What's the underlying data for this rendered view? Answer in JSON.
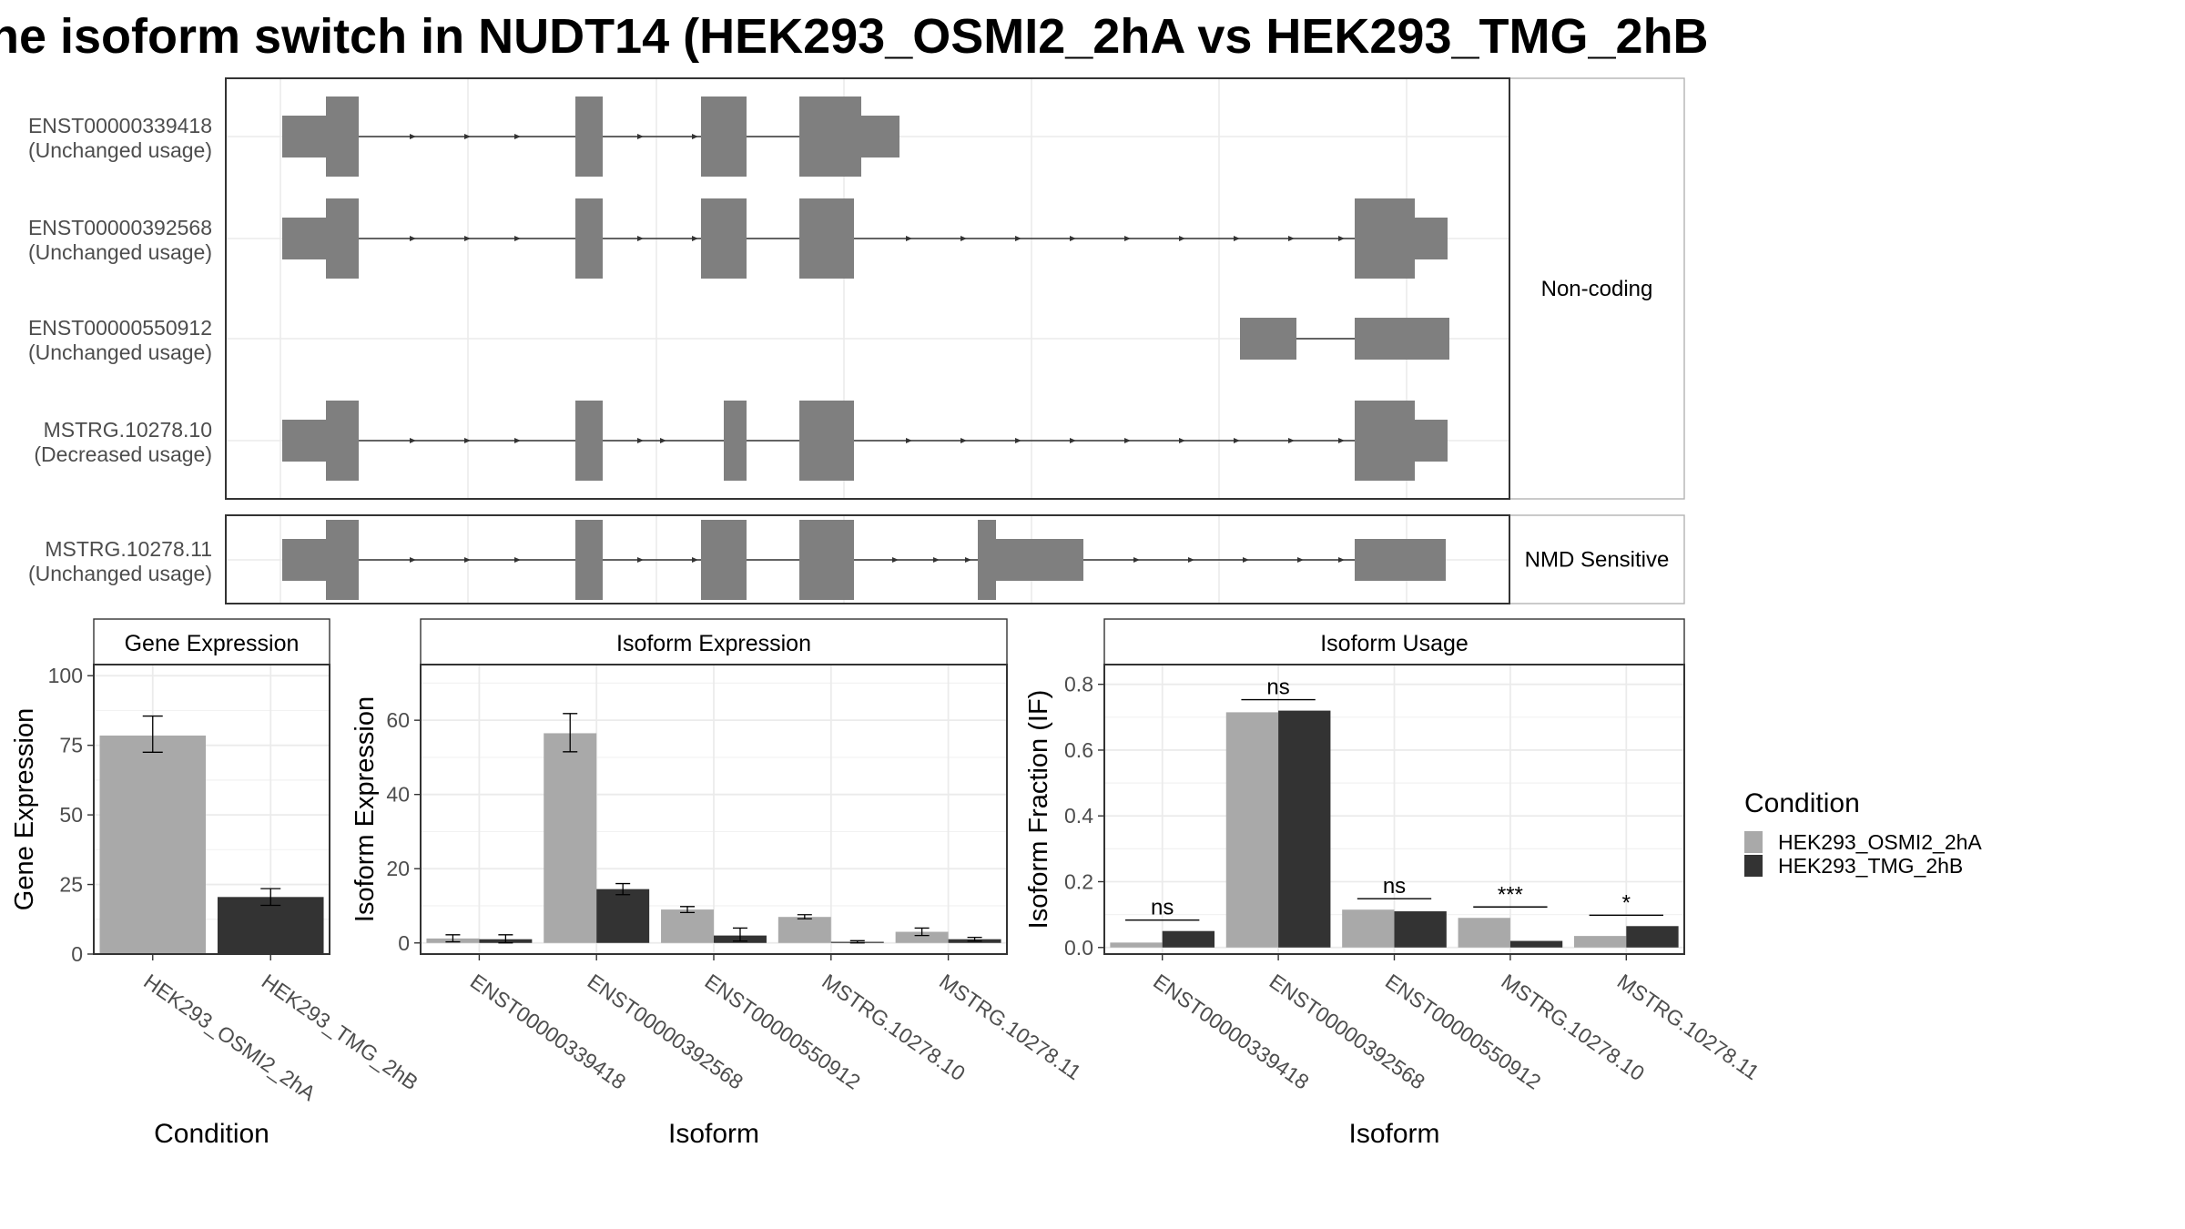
{
  "title": "ne isoform switch in NUDT14 (HEK293_OSMI2_2hA vs HEK293_TMG_2hB",
  "colors": {
    "exon": "#7f7f7f",
    "grid": "#ebebeb",
    "panel_border": "#333333",
    "strip_bg": "#ffffff",
    "cond_a": "#a9a9a9",
    "cond_b": "#333333"
  },
  "transcripts": {
    "groups": [
      {
        "label": "Non-coding",
        "isoforms": [
          {
            "id": "ENST00000339418",
            "status": "(Unchanged usage)"
          },
          {
            "id": "ENST00000392568",
            "status": "(Unchanged usage)"
          },
          {
            "id": "ENST00000550912",
            "status": "(Unchanged usage)"
          },
          {
            "id": "MSTRG.10278.10",
            "status": "(Decreased usage)"
          }
        ]
      },
      {
        "label": "NMD Sensitive",
        "isoforms": [
          {
            "id": "MSTRG.10278.11",
            "status": "(Unchanged usage)"
          }
        ]
      }
    ]
  },
  "chart_data": [
    {
      "type": "bar",
      "title": "Gene Expression",
      "xlabel": "Condition",
      "ylabel": "Gene Expression",
      "ylim": [
        0,
        104
      ],
      "yticks": [
        0,
        25,
        50,
        75,
        100
      ],
      "categories": [
        "HEK293_OSMI2_2hA",
        "HEK293_TMG_2hB"
      ],
      "values": [
        78.5,
        20.5
      ],
      "error_low": [
        72.5,
        17.5
      ],
      "error_high": [
        85.5,
        23.5
      ]
    },
    {
      "type": "bar",
      "title": "Isoform Expression",
      "xlabel": "Isoform",
      "ylabel": "Isoform Expression",
      "ylim": [
        -3,
        75
      ],
      "yticks": [
        0,
        20,
        40,
        60
      ],
      "categories": [
        "ENST00000339418",
        "ENST00000392568",
        "ENST00000550912",
        "MSTRG.10278.10",
        "MSTRG.10278.11"
      ],
      "series": [
        {
          "name": "HEK293_OSMI2_2hA",
          "values": [
            1.2,
            56.5,
            9.0,
            7.0,
            3.0
          ],
          "error_low": [
            0.3,
            51.5,
            8.2,
            6.5,
            2.0
          ],
          "error_high": [
            2.2,
            61.8,
            9.8,
            7.6,
            4.0
          ]
        },
        {
          "name": "HEK293_TMG_2hB",
          "values": [
            1.0,
            14.5,
            2.0,
            0.3,
            1.0
          ],
          "error_low": [
            0.0,
            13.0,
            0.5,
            0.0,
            0.5
          ],
          "error_high": [
            2.2,
            16.0,
            4.0,
            0.6,
            1.5
          ]
        }
      ]
    },
    {
      "type": "bar",
      "title": "Isoform Usage",
      "xlabel": "Isoform",
      "ylabel": "Isoform Fraction (IF)",
      "ylim": [
        -0.02,
        0.86
      ],
      "yticks": [
        0.0,
        0.2,
        0.4,
        0.6,
        0.8
      ],
      "ytick_labels": [
        "0.0",
        "0.2",
        "0.4",
        "0.6",
        "0.8"
      ],
      "categories": [
        "ENST00000339418",
        "ENST00000392568",
        "ENST00000550912",
        "MSTRG.10278.10",
        "MSTRG.10278.11"
      ],
      "series": [
        {
          "name": "HEK293_OSMI2_2hA",
          "values": [
            0.015,
            0.715,
            0.115,
            0.09,
            0.035
          ]
        },
        {
          "name": "HEK293_TMG_2hB",
          "values": [
            0.05,
            0.72,
            0.11,
            0.02,
            0.065
          ]
        }
      ],
      "significance": [
        "ns",
        "ns",
        "ns",
        "***",
        "*"
      ]
    }
  ],
  "legend": {
    "title": "Condition",
    "entries": [
      "HEK293_OSMI2_2hA",
      "HEK293_TMG_2hB"
    ]
  }
}
